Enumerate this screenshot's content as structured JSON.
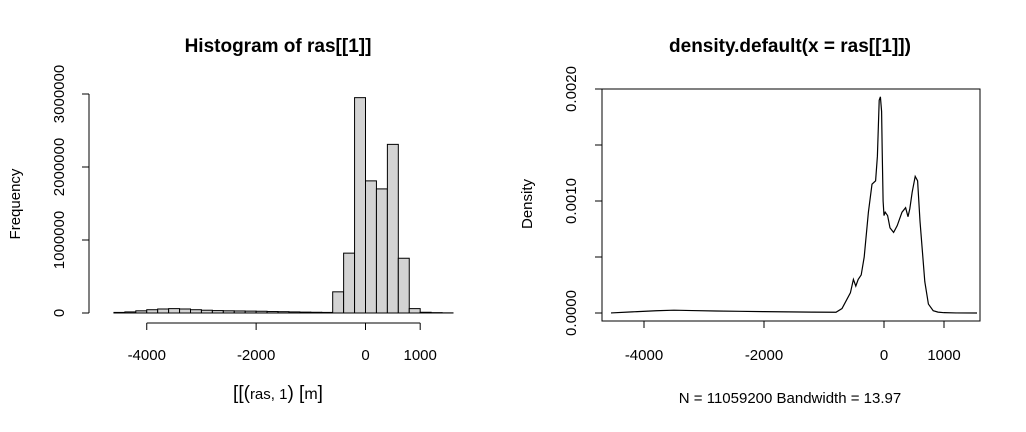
{
  "chart_data": [
    {
      "type": "bar",
      "title": "Histogram of ras[[1]]",
      "xlabel_parts": [
        "[[",
        "(",
        "ras, 1",
        ")",
        " [",
        "m",
        "]"
      ],
      "ylabel": "Frequency",
      "xlim": [
        -4800,
        1600
      ],
      "ylim": [
        0,
        3000000
      ],
      "x_ticks": [
        -4000,
        -2000,
        0,
        1000
      ],
      "x_tick_labels": [
        "-4000",
        "-2000",
        "0",
        "1000"
      ],
      "y_ticks": [
        0,
        1000000,
        2000000,
        3000000
      ],
      "y_tick_labels": [
        "0",
        "1000000",
        "2000000",
        "3000000"
      ],
      "bin_width": 200,
      "bin_starts": [
        -4600,
        -4400,
        -4200,
        -4000,
        -3800,
        -3600,
        -3400,
        -3200,
        -3000,
        -2800,
        -2600,
        -2400,
        -2200,
        -2000,
        -1800,
        -1600,
        -1400,
        -1200,
        -1000,
        -800,
        -600,
        -400,
        -200,
        0,
        200,
        400,
        600,
        800,
        1000,
        1200,
        1400
      ],
      "values": [
        8000,
        15000,
        30000,
        45000,
        55000,
        60000,
        55000,
        45000,
        38000,
        33000,
        30000,
        28000,
        26000,
        24000,
        20000,
        18000,
        15000,
        12000,
        10000,
        8000,
        290000,
        820000,
        2950000,
        1810000,
        1700000,
        2310000,
        750000,
        60000,
        10000,
        5000,
        2000
      ],
      "bar_fill": "#d3d3d3",
      "bar_stroke": "#000000"
    },
    {
      "type": "line",
      "title": "density.default(x = ras[[1]])",
      "xlabel": "N = 11059200   Bandwidth = 13.97",
      "ylabel": "Density",
      "xlim": [
        -4700,
        1600
      ],
      "ylim": [
        0,
        0.002
      ],
      "x_ticks": [
        -4000,
        -2000,
        0,
        1000
      ],
      "x_tick_labels": [
        "-4000",
        "-2000",
        "0",
        "1000"
      ],
      "y_ticks": [
        0,
        0.0005,
        0.001,
        0.0015,
        0.002
      ],
      "y_tick_labels": [
        "0.0000",
        "",
        "0.0010",
        "",
        "0.0020"
      ],
      "x": [
        -4550,
        -4200,
        -3800,
        -3500,
        -3200,
        -2800,
        -2400,
        -2000,
        -1600,
        -1200,
        -800,
        -700,
        -560,
        -510,
        -470,
        -430,
        -380,
        -330,
        -260,
        -200,
        -140,
        -110,
        -80,
        -60,
        -40,
        -30,
        -15,
        0,
        20,
        60,
        100,
        160,
        220,
        300,
        360,
        400,
        430,
        470,
        520,
        560,
        600,
        640,
        680,
        740,
        820,
        900,
        1000,
        1200,
        1550
      ],
      "y": [
        5e-07,
        1e-05,
        2e-05,
        2.5e-05,
        2.2e-05,
        1.8e-05,
        1.5e-05,
        1.2e-05,
        1e-05,
        8e-06,
        7e-06,
        4e-05,
        0.00018,
        0.0003,
        0.00024,
        0.0003,
        0.00034,
        0.0005,
        0.0009,
        0.00115,
        0.00118,
        0.0014,
        0.0019,
        0.00193,
        0.0018,
        0.00145,
        0.001,
        0.00087,
        0.0009,
        0.00087,
        0.00076,
        0.00072,
        0.00078,
        0.0009,
        0.00094,
        0.00086,
        0.00093,
        0.00108,
        0.00122,
        0.00118,
        0.00082,
        0.00055,
        0.00028,
        8e-05,
        2e-05,
        8e-06,
        3e-06,
        5e-07,
        0
      ],
      "line_color": "#000000"
    }
  ]
}
